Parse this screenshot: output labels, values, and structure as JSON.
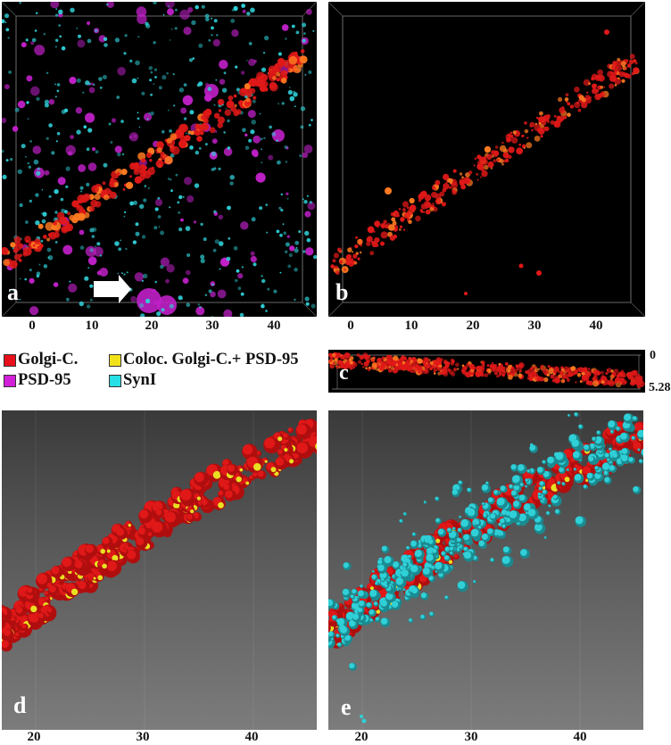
{
  "figure": {
    "panels": {
      "a": {
        "letter": "a",
        "channels": [
          "Golgi-C.",
          "PSD-95",
          "SynI"
        ],
        "has_arrow": true
      },
      "b": {
        "letter": "b",
        "channels": [
          "Golgi-C."
        ]
      },
      "c": {
        "letter": "c",
        "view": "side projection",
        "z_top_label": "0",
        "z_bottom_label": "5.28"
      },
      "d": {
        "letter": "d",
        "render": "3D surface",
        "channels": [
          "Golgi-C.",
          "Coloc. Golgi-C.+ PSD-95"
        ]
      },
      "e": {
        "letter": "e",
        "render": "3D surface",
        "channels": [
          "Golgi-C.",
          "Coloc. Golgi-C.+ PSD-95",
          "SynI"
        ]
      }
    },
    "axis_ab": {
      "ticks": [
        "0",
        "10",
        "20",
        "30",
        "40"
      ]
    },
    "axis_de": {
      "ticks": [
        "20",
        "30",
        "40"
      ]
    },
    "legend": [
      {
        "label": "Golgi-C.",
        "color": "#e8101a"
      },
      {
        "label": "Coloc. Golgi-C.+ PSD-95",
        "color": "#f2e21a"
      },
      {
        "label": "PSD-95",
        "color": "#d21fd8"
      },
      {
        "label": "SynI",
        "color": "#27dfe4"
      }
    ],
    "colors": {
      "golgi": "#e01818",
      "golgi_bright": "#ff7a20",
      "psd95": "#c020c8",
      "syni": "#30d0d8",
      "coloc": "#e8e020",
      "frame": "#8a8a8a"
    }
  }
}
